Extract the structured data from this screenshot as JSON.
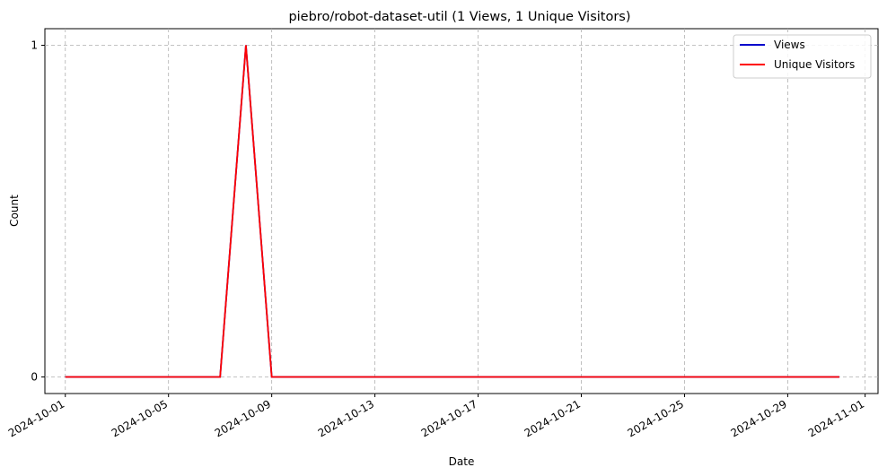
{
  "chart_data": {
    "type": "line",
    "title": "piebro/robot-dataset-util (1 Views, 1 Unique Visitors)",
    "xlabel": "Date",
    "ylabel": "Count",
    "x": [
      "2024-10-01",
      "2024-10-02",
      "2024-10-03",
      "2024-10-04",
      "2024-10-05",
      "2024-10-06",
      "2024-10-07",
      "2024-10-08",
      "2024-10-09",
      "2024-10-10",
      "2024-10-11",
      "2024-10-12",
      "2024-10-13",
      "2024-10-14",
      "2024-10-15",
      "2024-10-16",
      "2024-10-17",
      "2024-10-18",
      "2024-10-19",
      "2024-10-20",
      "2024-10-21",
      "2024-10-22",
      "2024-10-23",
      "2024-10-24",
      "2024-10-25",
      "2024-10-26",
      "2024-10-27",
      "2024-10-28",
      "2024-10-29",
      "2024-10-30",
      "2024-10-31"
    ],
    "series": [
      {
        "name": "Views",
        "color": "#0000cc",
        "values": [
          0,
          0,
          0,
          0,
          0,
          0,
          0,
          1,
          0,
          0,
          0,
          0,
          0,
          0,
          0,
          0,
          0,
          0,
          0,
          0,
          0,
          0,
          0,
          0,
          0,
          0,
          0,
          0,
          0,
          0,
          0
        ]
      },
      {
        "name": "Unique Visitors",
        "color": "#ff0000",
        "values": [
          0,
          0,
          0,
          0,
          0,
          0,
          0,
          1,
          0,
          0,
          0,
          0,
          0,
          0,
          0,
          0,
          0,
          0,
          0,
          0,
          0,
          0,
          0,
          0,
          0,
          0,
          0,
          0,
          0,
          0,
          0
        ]
      }
    ],
    "xticks": [
      "2024-10-01",
      "2024-10-05",
      "2024-10-09",
      "2024-10-13",
      "2024-10-17",
      "2024-10-21",
      "2024-10-25",
      "2024-10-29",
      "2024-11-01"
    ],
    "yticks": [
      0,
      1
    ],
    "xlim": [
      "2024-09-30T05:00",
      "2024-11-01T12:00"
    ],
    "ylim": [
      -0.05,
      1.05
    ],
    "grid": true,
    "legend_position": "top-right"
  }
}
